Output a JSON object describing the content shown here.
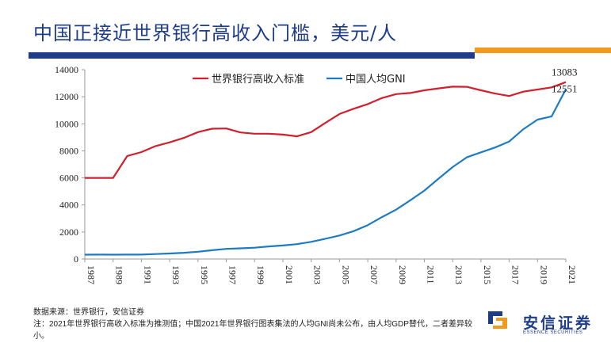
{
  "header": {
    "title": "中国正接近世界银行高收入门槛，美元/人",
    "accent_colors": {
      "primary": "#1f3c88",
      "secondary": "#f29a1e"
    }
  },
  "footer": {
    "source": "数据来源：世界银行，安信证券",
    "note": "注：2021年世界银行高收入标准为推测值；中国2021年世界银行图表集法的人均GNI尚未公布，由人均GDP替代，二者差异较小。"
  },
  "logo": {
    "name_cn": "安信证券",
    "name_en": "ESSENCE SECURITIES"
  },
  "chart_data": {
    "type": "line",
    "title": "",
    "xlabel": "",
    "ylabel": "",
    "ylim": [
      0,
      14000
    ],
    "yticks": [
      0,
      2000,
      4000,
      6000,
      8000,
      10000,
      12000,
      14000
    ],
    "xlim": [
      1987,
      2021
    ],
    "xticks": [
      1987,
      1989,
      1991,
      1993,
      1995,
      1997,
      1999,
      2001,
      2003,
      2005,
      2007,
      2009,
      2011,
      2013,
      2015,
      2017,
      2019,
      2021
    ],
    "grid": false,
    "legend_position": "top",
    "x": [
      1987,
      1988,
      1989,
      1990,
      1991,
      1992,
      1993,
      1994,
      1995,
      1996,
      1997,
      1998,
      1999,
      2000,
      2001,
      2002,
      2003,
      2004,
      2005,
      2006,
      2007,
      2008,
      2009,
      2010,
      2011,
      2012,
      2013,
      2014,
      2015,
      2016,
      2017,
      2018,
      2019,
      2020,
      2021
    ],
    "series": [
      {
        "name": "世界银行高收入标准",
        "color": "#d0202e",
        "values": [
          6000,
          6000,
          6000,
          7620,
          7910,
          8355,
          8626,
          8955,
          9385,
          9635,
          9655,
          9360,
          9265,
          9265,
          9205,
          9075,
          9385,
          10065,
          10725,
          11115,
          11455,
          11905,
          12195,
          12275,
          12475,
          12615,
          12745,
          12735,
          12475,
          12235,
          12055,
          12375,
          12535,
          12695,
          13083
        ],
        "end_label": "13083"
      },
      {
        "name": "中国人均GNI",
        "color": "#1f7bc1",
        "values": [
          320,
          330,
          320,
          330,
          330,
          370,
          410,
          460,
          540,
          650,
          750,
          790,
          840,
          930,
          1000,
          1100,
          1270,
          1500,
          1740,
          2060,
          2510,
          3100,
          3650,
          4340,
          5060,
          5940,
          6800,
          7520,
          7890,
          8250,
          8690,
          9600,
          10310,
          10550,
          12551
        ],
        "end_label": "12551"
      }
    ]
  }
}
